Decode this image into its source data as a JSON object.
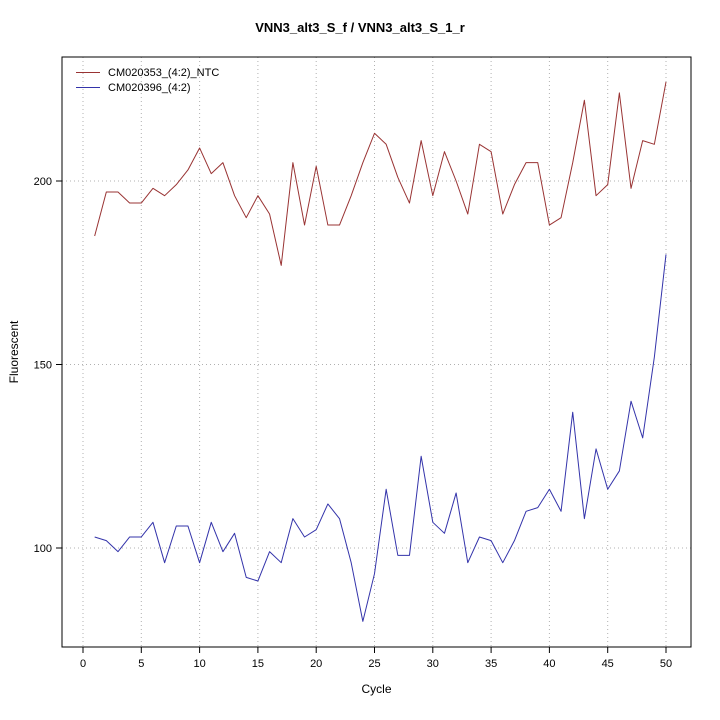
{
  "chart_data": {
    "type": "line",
    "title": "VNN3_alt3_S_f / VNN3_alt3_S_1_r",
    "xlabel": "Cycle",
    "ylabel": "Fluorescent",
    "grid": true,
    "legend_position": "top-left",
    "x_ticks": [
      0,
      5,
      10,
      15,
      20,
      25,
      30,
      35,
      40,
      45,
      50
    ],
    "y_ticks": [
      100,
      150,
      200
    ],
    "xlim": [
      -1.8,
      52.1
    ],
    "ylim": [
      73,
      234
    ],
    "axis_color": "#000000",
    "grid_color": "#b0b0b0",
    "background": "#ffffff",
    "x": [
      1,
      2,
      3,
      4,
      5,
      6,
      7,
      8,
      9,
      10,
      11,
      12,
      13,
      14,
      15,
      16,
      17,
      18,
      19,
      20,
      21,
      22,
      23,
      24,
      25,
      26,
      27,
      28,
      29,
      30,
      31,
      32,
      33,
      34,
      35,
      36,
      37,
      38,
      39,
      40,
      41,
      42,
      43,
      44,
      45,
      46,
      47,
      48,
      49,
      50
    ],
    "series": [
      {
        "name": "CM020353_(4:2)_NTC",
        "color": "#993333",
        "values": [
          185,
          197,
          197,
          194,
          194,
          198,
          196,
          199,
          203,
          209,
          202,
          205,
          196,
          190,
          196,
          191,
          177,
          205,
          188,
          204,
          188,
          188,
          196,
          205,
          213,
          210,
          201,
          194,
          211,
          196,
          208,
          200,
          191,
          210,
          208,
          191,
          199,
          205,
          205,
          188,
          190,
          205,
          222,
          196,
          199,
          224,
          198,
          211,
          210,
          227
        ]
      },
      {
        "name": "CM020396_(4:2)",
        "color": "#3333aa",
        "values": [
          103,
          102,
          99,
          103,
          103,
          107,
          96,
          106,
          106,
          96,
          107,
          99,
          104,
          92,
          91,
          99,
          96,
          108,
          103,
          105,
          112,
          108,
          96,
          80,
          93,
          116,
          98,
          98,
          125,
          107,
          104,
          115,
          96,
          103,
          102,
          96,
          102,
          110,
          111,
          116,
          110,
          137,
          108,
          127,
          116,
          121,
          140,
          130,
          152,
          180
        ]
      }
    ]
  }
}
